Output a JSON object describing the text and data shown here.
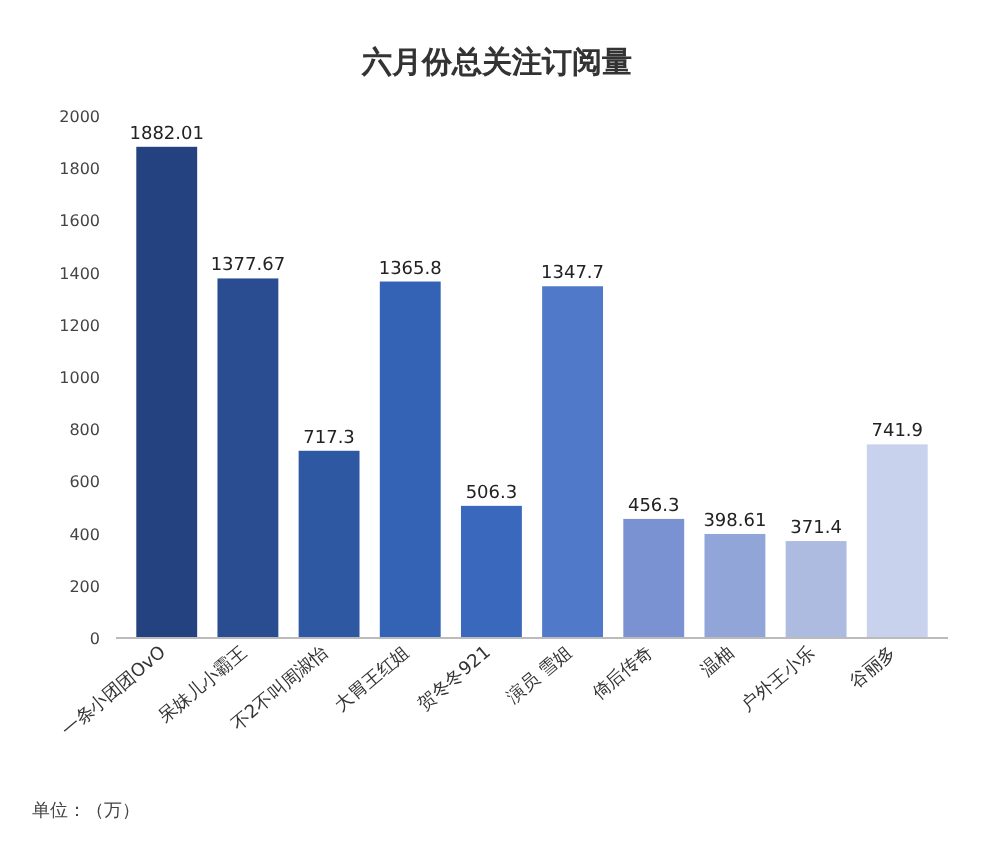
{
  "chart_data": {
    "type": "bar",
    "title": "六月份总关注订阅量",
    "categories": [
      "一条小团团OvO",
      "呆妹儿小霸王",
      "不2不叫周淑怡",
      "大胃王红姐",
      "贺冬冬921",
      "演员 雪姐",
      "倚后传奇",
      "温柚",
      "户外王小乐",
      "谷丽多"
    ],
    "values": [
      1882.01,
      1377.67,
      717.3,
      1365.8,
      506.3,
      1347.7,
      456.3,
      398.61,
      371.4,
      741.9
    ],
    "colors": [
      "#24427f",
      "#2a4d91",
      "#2f58a3",
      "#3462b5",
      "#3a68bd",
      "#5079c9",
      "#7a92d2",
      "#92a5d8",
      "#adbbe1",
      "#c9d2ec"
    ],
    "data_labels": true,
    "ylim": [
      0,
      2000
    ],
    "yticks": [
      0,
      200,
      400,
      600,
      800,
      1000,
      1200,
      1400,
      1600,
      1800,
      2000
    ],
    "annotations": [
      "单位：（万）"
    ]
  }
}
